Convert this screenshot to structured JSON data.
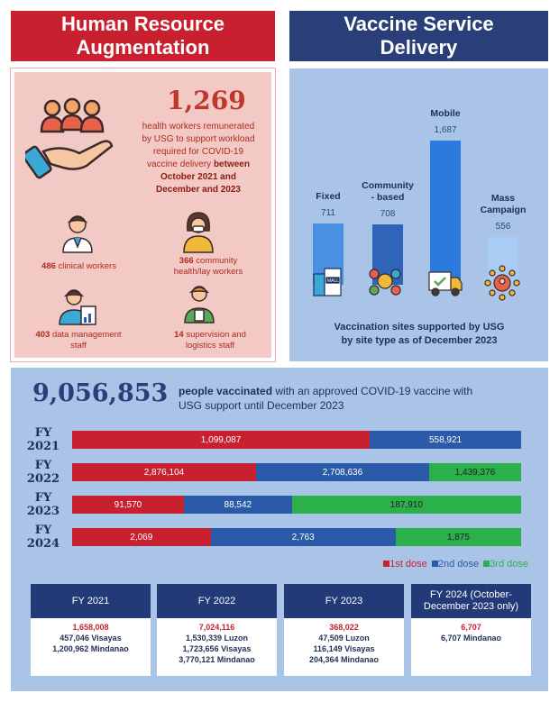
{
  "hr": {
    "title_line1": "Human Resource",
    "title_line2": "Augmentation",
    "big_number": "1,269",
    "desc_line1": "health workers remunerated",
    "desc_line2": "by USG to support workload",
    "desc_line3": "required for COVID-19",
    "desc_line4a": "vaccine delivery",
    "desc_line4b": "between",
    "desc_line5": "October 2021 and",
    "desc_line6": "December and 2023",
    "clinical_num": "486",
    "clinical_txt": "clinical workers",
    "community_num": "366",
    "community_txt1": "community",
    "community_txt2": "health/lay workers",
    "data_num": "403",
    "data_txt1": "data management",
    "data_txt2": "staff",
    "supervision_num": "14",
    "supervision_txt1": "supervision and",
    "supervision_txt2": "logistics staff"
  },
  "vaccine": {
    "title_line1": "Vaccine Service",
    "title_line2": "Delivery",
    "caption_line1": "Vaccination sites supported by USG",
    "caption_line2": "by site type as of December 2023"
  },
  "chart_data": [
    {
      "type": "bar",
      "categories": [
        "Fixed",
        "Community - based",
        "Mobile",
        "Mass Campaign"
      ],
      "values": [
        711,
        708,
        1687,
        556
      ],
      "value_labels": [
        "711",
        "708",
        "1,687",
        "556"
      ],
      "label_lines": [
        [
          "Fixed"
        ],
        [
          "Community",
          "- based"
        ],
        [
          "Mobile"
        ],
        [
          "Mass",
          "Campaign"
        ]
      ],
      "colors": [
        "#4a90e2",
        "#2f64b9",
        "#2b7bde",
        "#a9ccf5"
      ]
    },
    {
      "type": "bar",
      "stacked": true,
      "orientation": "horizontal",
      "categories": [
        "FY 2021",
        "FY 2022",
        "FY 2023",
        "FY 2024"
      ],
      "category_lines": [
        [
          "FY",
          "2021"
        ],
        [
          "FY",
          "2022"
        ],
        [
          "FY",
          "2023"
        ],
        [
          "FY",
          "2024"
        ]
      ],
      "series": [
        {
          "name": "1st dose",
          "color": "#c8202f",
          "values": [
            1099087,
            2876104,
            91570,
            2069
          ],
          "labels": [
            "1,099,087",
            "2,876,104",
            "91,570",
            "2,069"
          ]
        },
        {
          "name": "2nd dose",
          "color": "#2b5aa8",
          "values": [
            558921,
            2708636,
            88542,
            2763
          ],
          "labels": [
            "558,921",
            "2,708,636",
            "88,542",
            "2,763"
          ]
        },
        {
          "name": "3rd dose",
          "color": "#2db04b",
          "values": [
            0,
            1439376,
            187910,
            1875
          ],
          "labels": [
            "",
            "1,439,376",
            "187,910",
            "1,875"
          ]
        }
      ],
      "legend_position": "bottom-right"
    }
  ],
  "people": {
    "big_number": "9,056,853",
    "desc_bold": "people vaccinated",
    "desc_rest1": "with an approved COVID-19 vaccine with",
    "desc_rest2": "USG support until December 2023"
  },
  "legend": {
    "first": "1st dose",
    "second": "2nd dose",
    "third": "3rd dose"
  },
  "cards": [
    {
      "header": "FY 2021",
      "total": "1,658,008",
      "lines": [
        "457,046 Visayas",
        "1,200,962 Mindanao"
      ]
    },
    {
      "header": "FY 2022",
      "total": "7,024,116",
      "lines": [
        "1,530,339 Luzon",
        "1,723,656 Visayas",
        "3,770,121 Mindanao"
      ]
    },
    {
      "header": "FY 2023",
      "total": "368,022",
      "lines": [
        "47,509 Luzon",
        "116,149 Visayas",
        "204,364 Mindanao"
      ]
    },
    {
      "header_line1": "FY 2024 (October-",
      "header_line2": "December 2023 only)",
      "total": "6,707",
      "lines": [
        "6,707 Mindanao"
      ]
    }
  ]
}
